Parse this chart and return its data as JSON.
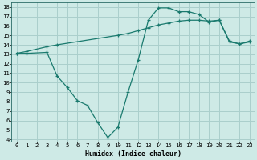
{
  "line1_x": [
    0,
    1,
    3,
    4,
    10,
    11,
    12,
    13,
    14,
    15,
    16,
    17,
    18,
    19,
    20,
    21,
    22,
    23
  ],
  "line1_y": [
    13.1,
    13.3,
    13.8,
    14.0,
    15.0,
    15.2,
    15.5,
    15.8,
    16.1,
    16.3,
    16.5,
    16.6,
    16.6,
    16.5,
    16.6,
    14.4,
    14.1,
    14.3
  ],
  "line2_x": [
    0,
    1,
    3,
    4,
    5,
    6,
    7,
    8,
    9,
    10,
    11,
    12,
    13,
    14,
    15,
    16,
    17,
    18,
    19,
    20,
    21,
    22,
    23
  ],
  "line2_y": [
    13.1,
    13.1,
    13.2,
    10.7,
    9.5,
    8.1,
    7.6,
    5.8,
    4.2,
    5.3,
    9.0,
    12.4,
    16.6,
    17.9,
    17.9,
    17.5,
    17.5,
    17.2,
    16.4,
    16.6,
    14.3,
    14.1,
    14.4
  ],
  "line_color": "#1a7a6e",
  "bg_color": "#ceeae6",
  "grid_color": "#aacfcc",
  "xlabel": "Humidex (Indice chaleur)",
  "xlim_min": -0.5,
  "xlim_max": 23.5,
  "ylim_min": 3.8,
  "ylim_max": 18.5,
  "xticks": [
    0,
    1,
    2,
    3,
    4,
    5,
    6,
    7,
    8,
    9,
    10,
    11,
    12,
    13,
    14,
    15,
    16,
    17,
    18,
    19,
    20,
    21,
    22,
    23
  ],
  "yticks": [
    4,
    5,
    6,
    7,
    8,
    9,
    10,
    11,
    12,
    13,
    14,
    15,
    16,
    17,
    18
  ],
  "tick_fontsize": 5.2,
  "xlabel_fontsize": 6.0
}
